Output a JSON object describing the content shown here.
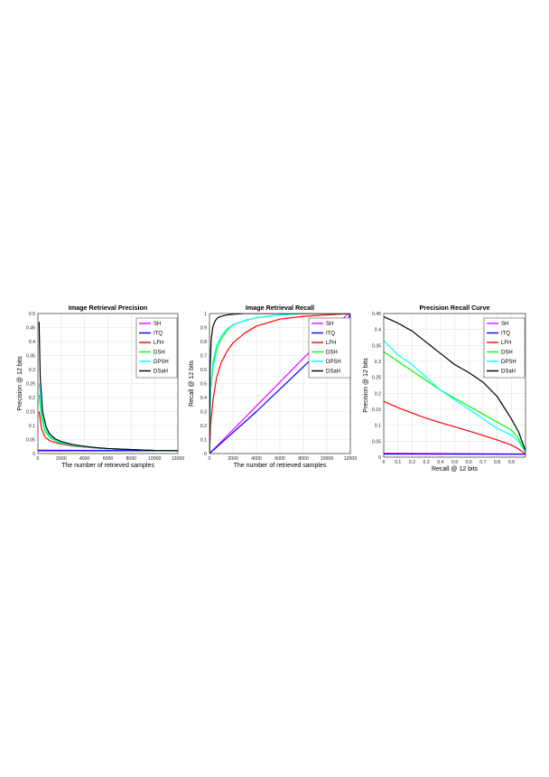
{
  "colors": {
    "SH": "#ff00ff",
    "ITQ": "#0000ff",
    "LFH": "#ff0000",
    "DSH": "#00ff00",
    "DPSH": "#00ffff",
    "DSaH": "#000000"
  },
  "chart_data": [
    {
      "type": "line",
      "title": "Image Retrieval Precision",
      "xlabel": "The number of retrieved samples",
      "ylabel": "Precision @ 12 bits",
      "xlim": [
        0,
        12000
      ],
      "ylim": [
        0,
        0.5
      ],
      "xticks": [
        "0",
        "2000",
        "4000",
        "6000",
        "8000",
        "10000",
        "12000"
      ],
      "yticks": [
        "0",
        "0.05",
        "0.1",
        "0.15",
        "0.2",
        "0.25",
        "0.3",
        "0.35",
        "0.4",
        "0.45",
        "0.5"
      ],
      "grid": true,
      "legend": "top-right",
      "series": [
        {
          "name": "SH",
          "x": [
            0,
            12000
          ],
          "y": [
            0.012,
            0.01
          ]
        },
        {
          "name": "ITQ",
          "x": [
            0,
            12000
          ],
          "y": [
            0.01,
            0.01
          ]
        },
        {
          "name": "LFH",
          "x": [
            100,
            300,
            600,
            1000,
            1500,
            2000,
            3000,
            4000,
            5000,
            6000,
            8000,
            10000,
            12000
          ],
          "y": [
            0.15,
            0.09,
            0.06,
            0.046,
            0.039,
            0.034,
            0.027,
            0.023,
            0.02,
            0.017,
            0.014,
            0.011,
            0.01
          ]
        },
        {
          "name": "DSH",
          "x": [
            100,
            300,
            600,
            1000,
            1500,
            2000,
            3000,
            4000,
            5000,
            6000,
            8000,
            10000,
            12000
          ],
          "y": [
            0.21,
            0.13,
            0.08,
            0.058,
            0.045,
            0.037,
            0.029,
            0.024,
            0.02,
            0.017,
            0.014,
            0.011,
            0.01
          ]
        },
        {
          "name": "DPSH",
          "x": [
            100,
            300,
            600,
            1000,
            1500,
            2000,
            3000,
            4000,
            5000,
            6000,
            8000,
            10000,
            12000
          ],
          "y": [
            0.25,
            0.15,
            0.09,
            0.062,
            0.048,
            0.039,
            0.03,
            0.024,
            0.02,
            0.017,
            0.014,
            0.011,
            0.01
          ]
        },
        {
          "name": "DSaH",
          "x": [
            100,
            200,
            400,
            700,
            1000,
            1500,
            2000,
            3000,
            4000,
            5000,
            6000,
            8000,
            10000,
            12000
          ],
          "y": [
            0.47,
            0.27,
            0.15,
            0.095,
            0.07,
            0.052,
            0.043,
            0.032,
            0.026,
            0.021,
            0.018,
            0.014,
            0.011,
            0.01
          ]
        }
      ]
    },
    {
      "type": "line",
      "title": "Image Retrieval Recall",
      "xlabel": "The number of retrieved samples",
      "ylabel": "Recall @ 12 bits",
      "xlim": [
        0,
        12000
      ],
      "ylim": [
        0,
        1
      ],
      "xticks": [
        "0",
        "2000",
        "4000",
        "6000",
        "8000",
        "10000",
        "12000"
      ],
      "yticks": [
        "0",
        "0.1",
        "0.2",
        "0.3",
        "0.4",
        "0.5",
        "0.6",
        "0.7",
        "0.8",
        "0.9",
        "1"
      ],
      "grid": true,
      "legend": "bottom-right",
      "series": [
        {
          "name": "SH",
          "x": [
            0,
            2000,
            4000,
            6000,
            8000,
            10000,
            11700,
            12000
          ],
          "y": [
            0,
            0.17,
            0.34,
            0.51,
            0.68,
            0.85,
            0.99,
            1
          ]
        },
        {
          "name": "ITQ",
          "x": [
            0,
            2000,
            4000,
            6000,
            8000,
            10000,
            11800,
            12000
          ],
          "y": [
            0,
            0.15,
            0.3,
            0.46,
            0.62,
            0.78,
            0.95,
            1
          ]
        },
        {
          "name": "LFH",
          "x": [
            0,
            100,
            300,
            600,
            1000,
            1500,
            2000,
            3000,
            4000,
            6000,
            8000,
            10000,
            12000
          ],
          "y": [
            0,
            0.2,
            0.38,
            0.54,
            0.65,
            0.73,
            0.79,
            0.86,
            0.91,
            0.96,
            0.98,
            0.99,
            1
          ]
        },
        {
          "name": "DSH",
          "x": [
            0,
            100,
            300,
            600,
            1000,
            1500,
            2000,
            3000,
            4000,
            6000,
            8000,
            12000
          ],
          "y": [
            0,
            0.45,
            0.62,
            0.74,
            0.82,
            0.88,
            0.92,
            0.95,
            0.97,
            0.99,
            1,
            1
          ]
        },
        {
          "name": "DPSH",
          "x": [
            0,
            100,
            300,
            600,
            1000,
            1500,
            2000,
            3000,
            4000,
            6000,
            8000,
            12000
          ],
          "y": [
            0,
            0.47,
            0.66,
            0.77,
            0.84,
            0.89,
            0.92,
            0.95,
            0.97,
            0.99,
            1,
            1
          ]
        },
        {
          "name": "DSaH",
          "x": [
            0,
            50,
            150,
            300,
            500,
            700,
            1000,
            1500,
            2000,
            3000,
            5000,
            12000
          ],
          "y": [
            0,
            0.6,
            0.82,
            0.91,
            0.95,
            0.97,
            0.98,
            0.99,
            0.995,
            1,
            1,
            1
          ]
        }
      ]
    },
    {
      "type": "line",
      "title": "Precision Recall Curve",
      "xlabel": "Recall @ 12 bits",
      "ylabel": "Precision @ 12 bits",
      "xlim": [
        0,
        1
      ],
      "ylim": [
        0,
        0.45
      ],
      "xticks": [
        "0",
        "0.1",
        "0.2",
        "0.3",
        "0.4",
        "0.5",
        "0.6",
        "0.7",
        "0.8",
        "0.9"
      ],
      "yticks": [
        "0",
        "0.05",
        "0.1",
        "0.15",
        "0.2",
        "0.25",
        "0.3",
        "0.35",
        "0.4",
        "0.45"
      ],
      "grid": true,
      "legend": "top-right",
      "series": [
        {
          "name": "SH",
          "x": [
            0,
            1
          ],
          "y": [
            0.012,
            0.01
          ]
        },
        {
          "name": "ITQ",
          "x": [
            0,
            1
          ],
          "y": [
            0.01,
            0.009
          ]
        },
        {
          "name": "LFH",
          "x": [
            0,
            0.1,
            0.2,
            0.3,
            0.4,
            0.5,
            0.6,
            0.7,
            0.8,
            0.9,
            0.95,
            1
          ],
          "y": [
            0.175,
            0.155,
            0.138,
            0.122,
            0.108,
            0.095,
            0.082,
            0.068,
            0.054,
            0.038,
            0.026,
            0.01
          ]
        },
        {
          "name": "DSH",
          "x": [
            0,
            0.1,
            0.2,
            0.3,
            0.4,
            0.5,
            0.6,
            0.7,
            0.8,
            0.9,
            0.95,
            1
          ],
          "y": [
            0.33,
            0.3,
            0.27,
            0.24,
            0.21,
            0.185,
            0.16,
            0.135,
            0.11,
            0.085,
            0.06,
            0.015
          ]
        },
        {
          "name": "DPSH",
          "x": [
            0,
            0.1,
            0.2,
            0.3,
            0.4,
            0.5,
            0.6,
            0.7,
            0.8,
            0.9,
            0.95,
            1
          ],
          "y": [
            0.365,
            0.32,
            0.29,
            0.25,
            0.21,
            0.18,
            0.15,
            0.12,
            0.09,
            0.07,
            0.05,
            0.015
          ]
        },
        {
          "name": "DSaH",
          "x": [
            0,
            0.1,
            0.2,
            0.3,
            0.4,
            0.5,
            0.6,
            0.7,
            0.8,
            0.9,
            0.95,
            1
          ],
          "y": [
            0.44,
            0.42,
            0.395,
            0.36,
            0.325,
            0.29,
            0.265,
            0.235,
            0.19,
            0.12,
            0.08,
            0.02
          ]
        }
      ]
    }
  ]
}
